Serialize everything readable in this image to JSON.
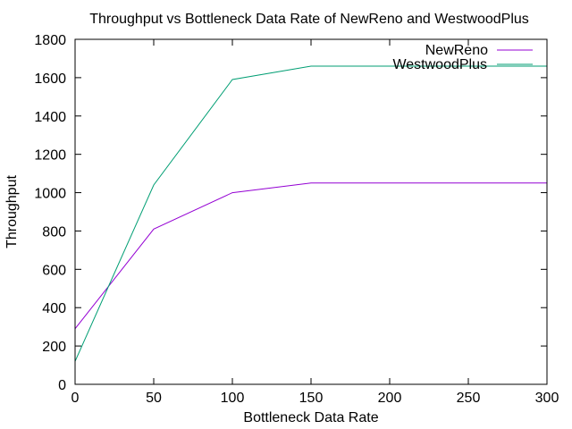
{
  "chart_data": {
    "type": "line",
    "title": "Throughput vs Bottleneck Data Rate of NewReno and WestwoodPlus",
    "xlabel": "Bottleneck Data Rate",
    "ylabel": "Throughput",
    "xlim": [
      0,
      300
    ],
    "ylim": [
      0,
      1800
    ],
    "xticks": [
      0,
      50,
      100,
      150,
      200,
      250,
      300
    ],
    "yticks": [
      0,
      200,
      400,
      600,
      800,
      1000,
      1200,
      1400,
      1600,
      1800
    ],
    "grid": false,
    "legend_position": "top-right",
    "x": [
      0,
      50,
      100,
      150,
      200,
      250,
      300
    ],
    "series": [
      {
        "name": "NewReno",
        "color": "#9400d3",
        "values": [
          290,
          810,
          1000,
          1050,
          1050,
          1050,
          1050
        ]
      },
      {
        "name": "WestwoodPlus",
        "color": "#009e73",
        "values": [
          120,
          1040,
          1590,
          1660,
          1660,
          1660,
          1660
        ]
      }
    ]
  }
}
